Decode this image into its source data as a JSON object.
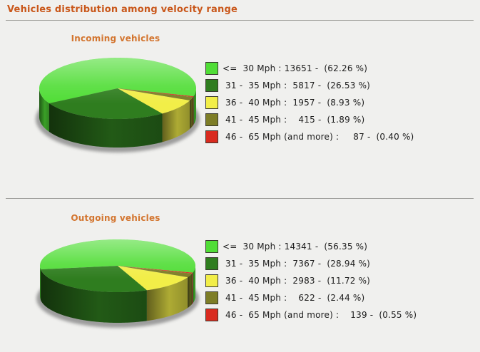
{
  "page": {
    "title": "Vehicles distribution among velocity range",
    "accent_color": "#c9571a",
    "background_color": "#f0f0ee"
  },
  "chart_data": [
    {
      "type": "pie",
      "title": "Incoming vehicles",
      "labels": [
        "<= 30 Mph",
        "31 - 35 Mph",
        "36 - 40 Mph",
        "41 - 45 Mph",
        "46 - 65 Mph (and more)"
      ],
      "values": [
        13651,
        5817,
        1957,
        415,
        87
      ],
      "percents": [
        62.26,
        26.53,
        8.93,
        1.89,
        0.4
      ],
      "colors": [
        "#50dd36",
        "#2f7d1f",
        "#f2ee48",
        "#7d7d26",
        "#d92b1f"
      ],
      "legend_texts": [
        "<=  30 Mph : 13651 -  (62.26 %)",
        " 31 -  35 Mph :  5817 -  (26.53 %)",
        " 36 -  40 Mph :  1957 -  (8.93 %)",
        " 41 -  45 Mph :    415 -  (1.89 %)",
        " 46 -  65 Mph (and more) :     87 -  (0.40 %)"
      ],
      "legend_position": "right",
      "start_angle_deg": -15,
      "direction": "ccw",
      "effect_3d": true
    },
    {
      "type": "pie",
      "title": "Outgoing vehicles",
      "labels": [
        "<= 30 Mph",
        "31 - 35 Mph",
        "36 - 40 Mph",
        "41 - 45 Mph",
        "46 - 65 Mph (and more)"
      ],
      "values": [
        14341,
        7367,
        2983,
        622,
        139
      ],
      "percents": [
        56.35,
        28.94,
        11.72,
        2.44,
        0.55
      ],
      "colors": [
        "#50dd36",
        "#2f7d1f",
        "#f2ee48",
        "#7d7d26",
        "#d92b1f"
      ],
      "legend_texts": [
        "<=  30 Mph : 14341 -  (56.35 %)",
        " 31 -  35 Mph :  7367 -  (28.94 %)",
        " 36 -  40 Mph :  2983 -  (11.72 %)",
        " 41 -  45 Mph :    622 -  (2.44 %)",
        " 46 -  65 Mph (and more) :    139 -  (0.55 %)"
      ],
      "legend_position": "right",
      "start_angle_deg": -15,
      "direction": "ccw",
      "effect_3d": true
    }
  ]
}
